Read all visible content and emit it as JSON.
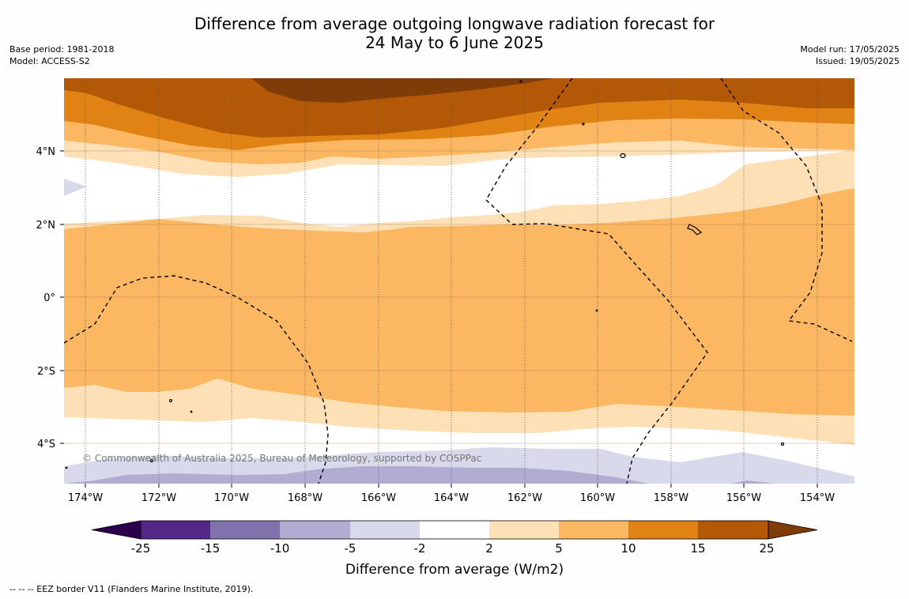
{
  "header": {
    "title_line1": "Difference from average outgoing longwave radiation forecast for",
    "title_line2": "24 May to 6 June 2025",
    "base_period": "Base period: 1981-2018",
    "model": "Model: ACCESS-S2",
    "model_run": "Model run: 17/05/2025",
    "issued": "Issued: 19/05/2025"
  },
  "map": {
    "x_ticks": [
      "174°W",
      "172°W",
      "170°W",
      "168°W",
      "166°W",
      "164°W",
      "162°W",
      "160°W",
      "158°W",
      "156°W",
      "154°W"
    ],
    "y_ticks": [
      "4°N",
      "2°N",
      "0°",
      "2°S",
      "4°S"
    ],
    "copyright": "© Commonwealth of Australia 2025, Bureau of Meteorology, supported by COSPPac",
    "colors": {
      "c_neg25": "#2d004b",
      "c_neg15": "#542788",
      "c_neg10": "#8073ac",
      "c_neg5": "#b2abd2",
      "c_neg2": "#d8daeb",
      "c_zero": "#ffffff",
      "c_2": "#fee0b6",
      "c_5": "#fbb761",
      "c_10": "#e08214",
      "c_15": "#b35806",
      "c_25": "#7f3b08"
    }
  },
  "colorbar": {
    "labels": [
      "-25",
      "-15",
      "-10",
      "-5",
      "-2",
      "2",
      "5",
      "10",
      "15",
      "25"
    ],
    "title": "Difference from average (W/m2)"
  },
  "footer": {
    "eez_note": "--  --  -- EEZ border V11 (Flanders Marine Institute, 2019)."
  }
}
